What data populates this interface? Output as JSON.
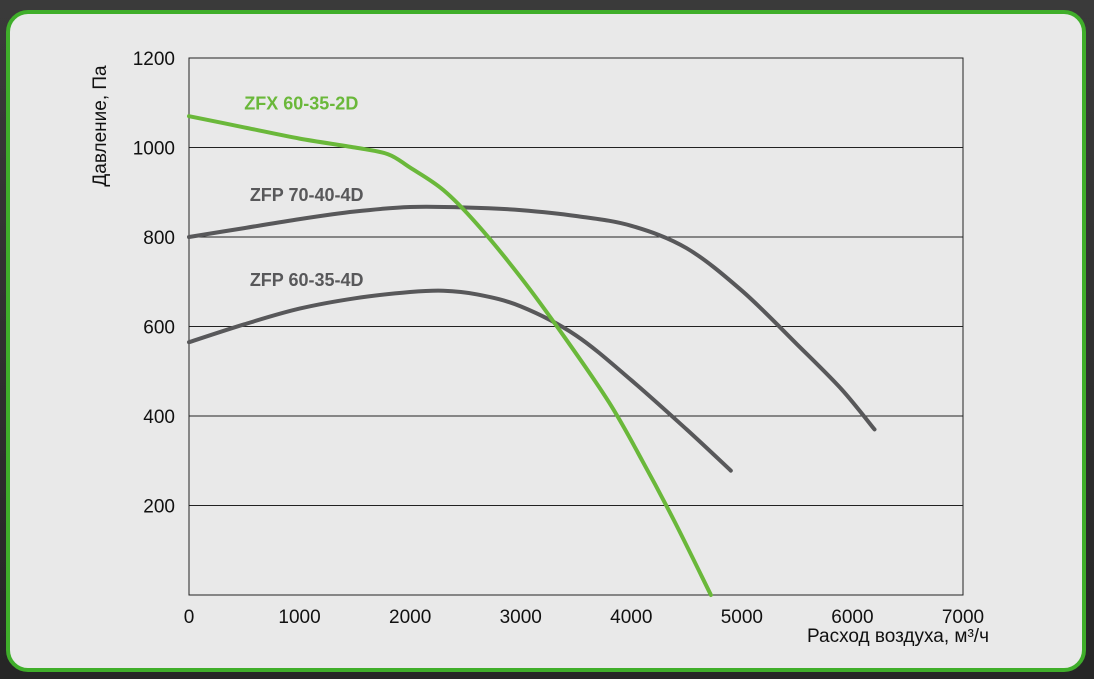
{
  "chart_data": {
    "type": "line",
    "xlabel": "Расход воздуха, м³/ч",
    "ylabel": "Давление, Па",
    "xlim": [
      0,
      7000
    ],
    "ylim": [
      0,
      1200
    ],
    "x_ticks": [
      0,
      1000,
      2000,
      3000,
      4000,
      5000,
      6000,
      7000
    ],
    "y_ticks": [
      200,
      400,
      600,
      800,
      1000,
      1200
    ],
    "grid": "horizontal",
    "legend": "inline labels",
    "series": [
      {
        "name": "ZFX 60-35-2D",
        "color": "#6ab83a",
        "x": [
          0,
          500,
          1000,
          1500,
          1800,
          2000,
          2300,
          2600,
          3000,
          3400,
          3800,
          4100,
          4400,
          4720
        ],
        "y": [
          1070,
          1045,
          1020,
          1000,
          985,
          955,
          905,
          830,
          710,
          575,
          430,
          300,
          160,
          0
        ]
      },
      {
        "name": "ZFP 70-40-4D",
        "color": "#58585a",
        "x": [
          0,
          500,
          1000,
          1500,
          2000,
          2500,
          3000,
          3500,
          4000,
          4500,
          5000,
          5500,
          5900,
          6200
        ],
        "y": [
          800,
          820,
          840,
          857,
          867,
          866,
          860,
          847,
          825,
          775,
          680,
          560,
          460,
          370
        ]
      },
      {
        "name": "ZFP 60-35-4D",
        "color": "#58585a",
        "x": [
          0,
          500,
          1000,
          1500,
          2000,
          2300,
          2600,
          3000,
          3500,
          4000,
          4500,
          4900
        ],
        "y": [
          565,
          605,
          640,
          663,
          677,
          680,
          672,
          645,
          580,
          480,
          370,
          278
        ]
      }
    ]
  }
}
